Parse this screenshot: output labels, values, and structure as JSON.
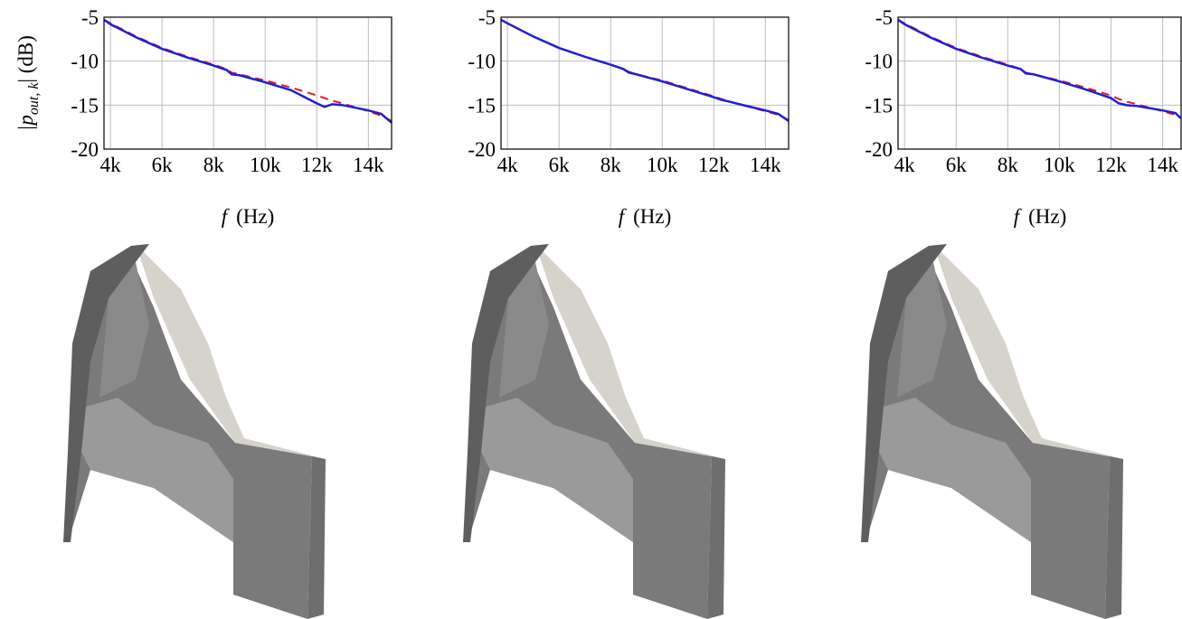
{
  "chart_data": [
    {
      "type": "line",
      "ylabel": [
        "|p",
        "out, k",
        "| (dB)"
      ],
      "xlabel": [
        "f",
        "(Hz)"
      ],
      "x": [
        3750,
        4000,
        5000,
        6000,
        7000,
        8000,
        8500,
        8700,
        9000,
        10000,
        11000,
        12000,
        12300,
        12600,
        13000,
        14000,
        14500,
        14900
      ],
      "series": [
        {
          "color": "#e41a1c",
          "dashed": true,
          "values": [
            -5.3,
            -5.7,
            -7.2,
            -8.5,
            -9.5,
            -10.4,
            -10.9,
            -11.3,
            -11.5,
            -12.2,
            -13.0,
            -13.9,
            -14.2,
            -14.5,
            -14.8,
            -15.7,
            -16.2,
            -16.8
          ]
        },
        {
          "color": "#1f1fd6",
          "dashed": false,
          "values": [
            -5.3,
            -5.8,
            -7.3,
            -8.6,
            -9.6,
            -10.5,
            -11.0,
            -11.5,
            -11.6,
            -12.4,
            -13.3,
            -14.8,
            -15.2,
            -14.9,
            -15.0,
            -15.6,
            -16.0,
            -17.0
          ]
        }
      ],
      "xlim": [
        3750,
        14900
      ],
      "ylim": [
        -20,
        -5
      ],
      "xticks": [
        {
          "value": 4000,
          "label": "4k"
        },
        {
          "value": 6000,
          "label": "6k"
        },
        {
          "value": 8000,
          "label": "8k"
        },
        {
          "value": 10000,
          "label": "10k"
        },
        {
          "value": 12000,
          "label": "12k"
        },
        {
          "value": 14000,
          "label": "14k"
        }
      ],
      "yticks": [
        -20,
        -15,
        -10,
        -5
      ],
      "grid": true
    },
    {
      "type": "line",
      "xlabel": [
        "f",
        "(Hz)"
      ],
      "x": [
        3750,
        4000,
        5000,
        6000,
        7000,
        8000,
        8500,
        8700,
        9000,
        10000,
        11000,
        12000,
        12300,
        12600,
        13000,
        14000,
        14500,
        14900
      ],
      "series": [
        {
          "color": "#e41a1c",
          "dashed": true,
          "values": [
            -5.3,
            -5.7,
            -7.2,
            -8.5,
            -9.5,
            -10.4,
            -10.9,
            -11.2,
            -11.5,
            -12.2,
            -13.1,
            -14.0,
            -14.3,
            -14.6,
            -14.9,
            -15.7,
            -16.1,
            -16.7
          ]
        },
        {
          "color": "#1f1fd6",
          "dashed": false,
          "values": [
            -5.3,
            -5.7,
            -7.2,
            -8.5,
            -9.5,
            -10.4,
            -10.9,
            -11.3,
            -11.5,
            -12.3,
            -13.2,
            -14.1,
            -14.4,
            -14.6,
            -14.9,
            -15.6,
            -16.0,
            -16.8
          ]
        }
      ],
      "xlim": [
        3750,
        14900
      ],
      "ylim": [
        -20,
        -5
      ],
      "xticks": [
        {
          "value": 4000,
          "label": "4k"
        },
        {
          "value": 6000,
          "label": "6k"
        },
        {
          "value": 8000,
          "label": "8k"
        },
        {
          "value": 10000,
          "label": "10k"
        },
        {
          "value": 12000,
          "label": "12k"
        },
        {
          "value": 14000,
          "label": "14k"
        }
      ],
      "yticks": [
        -20,
        -15,
        -10,
        -5
      ],
      "grid": true
    },
    {
      "type": "line",
      "xlabel": [
        "f",
        "(Hz)"
      ],
      "x": [
        3750,
        4000,
        5000,
        6000,
        7000,
        8000,
        8500,
        8700,
        9000,
        10000,
        11000,
        12000,
        12300,
        12600,
        13000,
        14000,
        14500,
        14700
      ],
      "series": [
        {
          "color": "#e41a1c",
          "dashed": true,
          "values": [
            -5.3,
            -5.7,
            -7.2,
            -8.5,
            -9.5,
            -10.4,
            -10.9,
            -11.3,
            -11.5,
            -12.2,
            -13.0,
            -13.9,
            -14.3,
            -14.6,
            -14.9,
            -15.7,
            -16.1,
            -16.4
          ]
        },
        {
          "color": "#1f1fd6",
          "dashed": false,
          "values": [
            -5.3,
            -5.8,
            -7.3,
            -8.6,
            -9.6,
            -10.5,
            -10.9,
            -11.4,
            -11.5,
            -12.3,
            -13.2,
            -14.2,
            -14.8,
            -15.0,
            -15.1,
            -15.6,
            -15.9,
            -16.5
          ]
        }
      ],
      "xlim": [
        3750,
        14750
      ],
      "ylim": [
        -20,
        -5
      ],
      "xticks": [
        {
          "value": 4000,
          "label": "4k"
        },
        {
          "value": 6000,
          "label": "6k"
        },
        {
          "value": 8000,
          "label": "8k"
        },
        {
          "value": 10000,
          "label": "10k"
        },
        {
          "value": 12000,
          "label": "12k"
        },
        {
          "value": 14000,
          "label": "14k"
        }
      ],
      "yticks": [
        -20,
        -15,
        -10,
        -5
      ],
      "grid": true
    }
  ]
}
